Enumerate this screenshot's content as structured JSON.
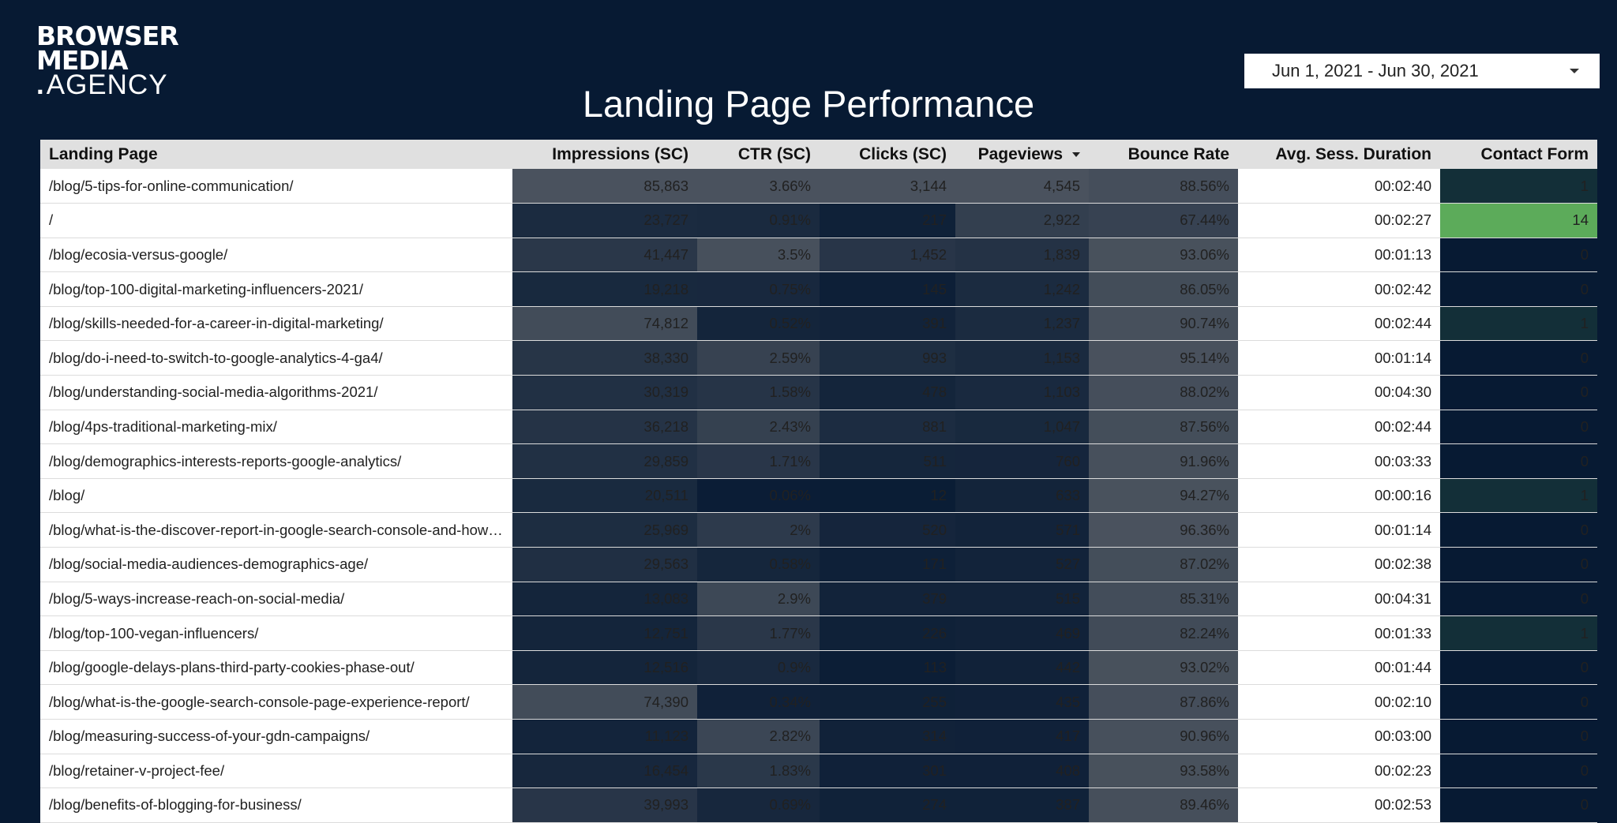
{
  "brand": {
    "logo_line1": "BROWSER",
    "logo_line2": "MEDIA",
    "logo_line3": "AGENCY",
    "logo_dot": "."
  },
  "header": {
    "title": "Landing Page Performance",
    "date_range": "Jun 1, 2021 - Jun 30, 2021"
  },
  "colors": {
    "background": "#071a33",
    "heat_gray": "#888888",
    "heat_green": "#5cab5a"
  },
  "table": {
    "columns": [
      {
        "key": "page",
        "label": "Landing Page",
        "align": "left"
      },
      {
        "key": "impressions",
        "label": "Impressions (SC)",
        "heat": "gray",
        "max": 85863
      },
      {
        "key": "ctr",
        "label": "CTR (SC)",
        "heat": "gray",
        "max": 3.66
      },
      {
        "key": "clicks",
        "label": "Clicks (SC)",
        "heat": "gray",
        "max": 3144
      },
      {
        "key": "pageviews",
        "label": "Pageviews",
        "heat": "gray",
        "max": 4545,
        "sorted": "desc"
      },
      {
        "key": "bounce",
        "label": "Bounce Rate",
        "heat": "gray",
        "max": 96.36
      },
      {
        "key": "duration",
        "label": "Avg. Sess. Duration"
      },
      {
        "key": "contact",
        "label": "Contact Form",
        "heat": "green",
        "max": 14
      }
    ],
    "rows": [
      {
        "page": "/blog/5-tips-for-online-communication/",
        "impressions": "85,863",
        "ctr": "3.66%",
        "clicks": "3,144",
        "pageviews": "4,545",
        "bounce": "88.56%",
        "duration": "00:02:40",
        "contact": "1"
      },
      {
        "page": "/",
        "impressions": "23,727",
        "ctr": "0.91%",
        "clicks": "217",
        "pageviews": "2,922",
        "bounce": "67.44%",
        "duration": "00:02:27",
        "contact": "14"
      },
      {
        "page": "/blog/ecosia-versus-google/",
        "impressions": "41,447",
        "ctr": "3.5%",
        "clicks": "1,452",
        "pageviews": "1,839",
        "bounce": "93.06%",
        "duration": "00:01:13",
        "contact": "0"
      },
      {
        "page": "/blog/top-100-digital-marketing-influencers-2021/",
        "impressions": "19,218",
        "ctr": "0.75%",
        "clicks": "145",
        "pageviews": "1,242",
        "bounce": "86.05%",
        "duration": "00:02:42",
        "contact": "0"
      },
      {
        "page": "/blog/skills-needed-for-a-career-in-digital-marketing/",
        "impressions": "74,812",
        "ctr": "0.52%",
        "clicks": "391",
        "pageviews": "1,237",
        "bounce": "90.74%",
        "duration": "00:02:44",
        "contact": "1"
      },
      {
        "page": "/blog/do-i-need-to-switch-to-google-analytics-4-ga4/",
        "impressions": "38,330",
        "ctr": "2.59%",
        "clicks": "993",
        "pageviews": "1,153",
        "bounce": "95.14%",
        "duration": "00:01:14",
        "contact": "0"
      },
      {
        "page": "/blog/understanding-social-media-algorithms-2021/",
        "impressions": "30,319",
        "ctr": "1.58%",
        "clicks": "478",
        "pageviews": "1,103",
        "bounce": "88.02%",
        "duration": "00:04:30",
        "contact": "0"
      },
      {
        "page": "/blog/4ps-traditional-marketing-mix/",
        "impressions": "36,218",
        "ctr": "2.43%",
        "clicks": "881",
        "pageviews": "1,047",
        "bounce": "87.56%",
        "duration": "00:02:44",
        "contact": "0"
      },
      {
        "page": "/blog/demographics-interests-reports-google-analytics/",
        "impressions": "29,859",
        "ctr": "1.71%",
        "clicks": "511",
        "pageviews": "760",
        "bounce": "91.96%",
        "duration": "00:03:33",
        "contact": "0"
      },
      {
        "page": "/blog/",
        "impressions": "20,511",
        "ctr": "0.06%",
        "clicks": "12",
        "pageviews": "633",
        "bounce": "94.27%",
        "duration": "00:00:16",
        "contact": "1"
      },
      {
        "page": "/blog/what-is-the-discover-report-in-google-search-console-and-how-t…",
        "impressions": "25,969",
        "ctr": "2%",
        "clicks": "520",
        "pageviews": "571",
        "bounce": "96.36%",
        "duration": "00:01:14",
        "contact": "0"
      },
      {
        "page": "/blog/social-media-audiences-demographics-age/",
        "impressions": "29,563",
        "ctr": "0.58%",
        "clicks": "171",
        "pageviews": "527",
        "bounce": "87.02%",
        "duration": "00:02:38",
        "contact": "0"
      },
      {
        "page": "/blog/5-ways-increase-reach-on-social-media/",
        "impressions": "13,083",
        "ctr": "2.9%",
        "clicks": "379",
        "pageviews": "515",
        "bounce": "85.31%",
        "duration": "00:04:31",
        "contact": "0"
      },
      {
        "page": "/blog/top-100-vegan-influencers/",
        "impressions": "12,751",
        "ctr": "1.77%",
        "clicks": "226",
        "pageviews": "469",
        "bounce": "82.24%",
        "duration": "00:01:33",
        "contact": "1"
      },
      {
        "page": "/blog/google-delays-plans-third-party-cookies-phase-out/",
        "impressions": "12,516",
        "ctr": "0.9%",
        "clicks": "113",
        "pageviews": "442",
        "bounce": "93.02%",
        "duration": "00:01:44",
        "contact": "0"
      },
      {
        "page": "/blog/what-is-the-google-search-console-page-experience-report/",
        "impressions": "74,390",
        "ctr": "0.34%",
        "clicks": "255",
        "pageviews": "435",
        "bounce": "87.86%",
        "duration": "00:02:10",
        "contact": "0"
      },
      {
        "page": "/blog/measuring-success-of-your-gdn-campaigns/",
        "impressions": "11,123",
        "ctr": "2.82%",
        "clicks": "314",
        "pageviews": "417",
        "bounce": "90.96%",
        "duration": "00:03:00",
        "contact": "0"
      },
      {
        "page": "/blog/retainer-v-project-fee/",
        "impressions": "16,454",
        "ctr": "1.83%",
        "clicks": "301",
        "pageviews": "408",
        "bounce": "93.58%",
        "duration": "00:02:23",
        "contact": "0"
      },
      {
        "page": "/blog/benefits-of-blogging-for-business/",
        "impressions": "39,993",
        "ctr": "0.69%",
        "clicks": "274",
        "pageviews": "387",
        "bounce": "89.46%",
        "duration": "00:02:53",
        "contact": "0"
      }
    ]
  }
}
